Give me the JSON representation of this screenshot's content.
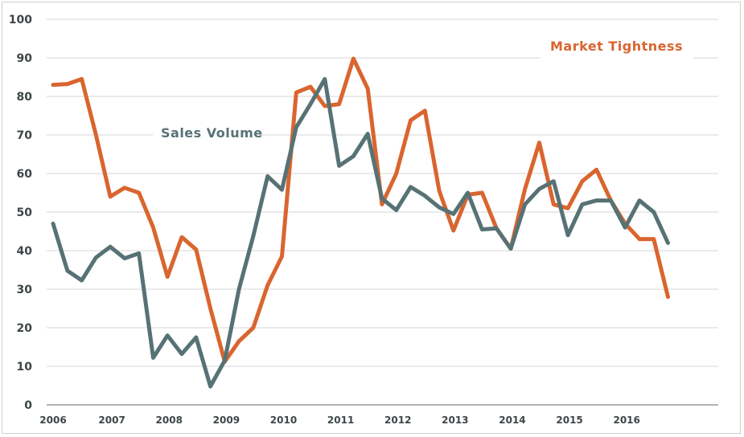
{
  "chart_data": {
    "type": "line",
    "title": "",
    "xlabel": "",
    "ylabel": "",
    "ylim": [
      0,
      100
    ],
    "yticks": [
      "0",
      "10",
      "20",
      "30",
      "40",
      "50",
      "60",
      "70",
      "80",
      "90",
      "100"
    ],
    "x_tick_labels": [
      "2006",
      "2007",
      "2008",
      "2009",
      "2010",
      "2011",
      "2012",
      "2013",
      "2014",
      "2015",
      "2016"
    ],
    "x_start_label": "2006",
    "points_per_year": 4,
    "grid": "horizontal",
    "series": [
      {
        "name": "Market Tightness",
        "color": "#d9652f",
        "values": [
          83,
          83.2,
          84.5,
          70,
          54,
          56.3,
          55,
          46,
          33.2,
          43.5,
          40.3,
          25,
          11.2,
          16.5,
          20,
          31,
          38.5,
          81,
          82.5,
          77.5,
          78,
          89.8,
          82,
          52,
          60,
          73.8,
          76.3,
          55.5,
          45.2,
          54.5,
          55,
          45.8,
          40.5,
          56,
          68,
          52,
          51,
          58,
          61,
          53,
          47,
          43,
          43,
          28
        ]
      },
      {
        "name": "Sales Volume",
        "color": "#577275",
        "values": [
          47,
          34.8,
          32.3,
          38.2,
          41,
          38,
          39.3,
          12.2,
          18,
          13.2,
          17.5,
          4.8,
          11.5,
          30,
          43.8,
          59.3,
          55.8,
          72,
          78,
          84.5,
          62,
          64.5,
          70.3,
          53.5,
          50.5,
          56.5,
          54.2,
          51.2,
          49.5,
          55,
          45.5,
          45.8,
          40.5,
          52,
          56,
          58,
          44,
          52,
          53,
          53,
          46,
          53,
          50,
          42
        ]
      }
    ],
    "annotations": [
      {
        "text": "Market Tightness",
        "series": "Market Tightness"
      },
      {
        "text": "Sales Volume",
        "series": "Sales Volume"
      }
    ]
  }
}
